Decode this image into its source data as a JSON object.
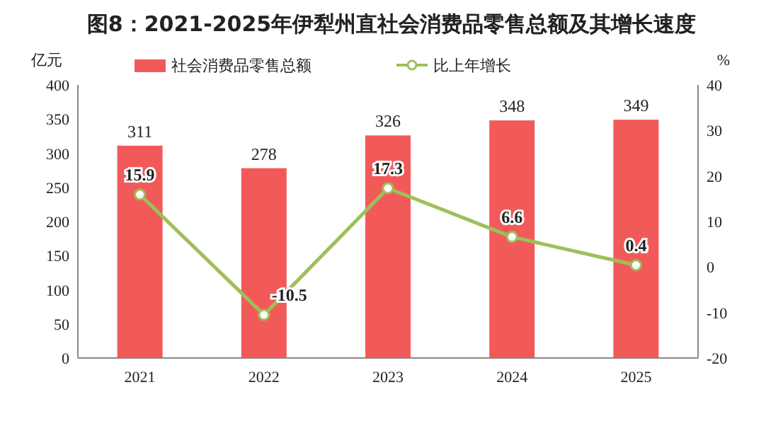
{
  "chart_data": {
    "type": "bar",
    "title": "图8：2021-2025年伊犁州直社会消费品零售总额及其增长速度",
    "ylabel": "亿元",
    "y2label": "%",
    "categories": [
      "2021",
      "2022",
      "2023",
      "2024",
      "2025"
    ],
    "series": [
      {
        "name": "社会消费品零售总额",
        "color": "#f25a5a",
        "values": [
          311,
          278,
          326,
          348,
          349
        ]
      },
      {
        "name": "比上年增长",
        "type": "line",
        "axis": "y2",
        "color": "#9dbf5a",
        "marker": "circle",
        "values": [
          15.9,
          -10.5,
          17.3,
          6.6,
          0.4
        ]
      }
    ],
    "ylim": [
      0,
      400
    ],
    "yticks": [
      0,
      50,
      100,
      150,
      200,
      250,
      300,
      350,
      400
    ],
    "y2lim": [
      -20,
      40
    ],
    "y2ticks": [
      -20,
      -10,
      0,
      10,
      20,
      30,
      40
    ],
    "legend": "top",
    "data_labels": true
  }
}
